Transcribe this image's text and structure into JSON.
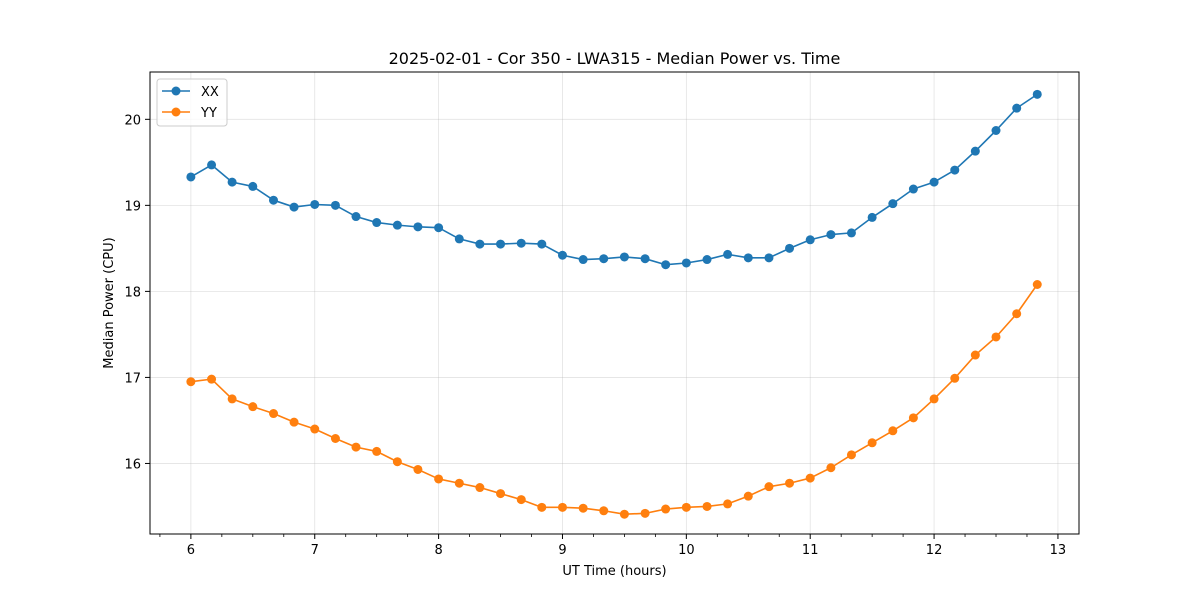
{
  "chart_data": {
    "type": "line",
    "title": "2025-02-01 - Cor 350 - LWA315 - Median Power vs. Time",
    "xlabel": "UT Time (hours)",
    "ylabel": "Median Power (CPU)",
    "xlim": [
      5.67,
      13.17
    ],
    "ylim": [
      15.18,
      20.55
    ],
    "xticks": [
      6,
      7,
      8,
      9,
      10,
      11,
      12,
      13
    ],
    "xtick_labels": [
      "6",
      "7",
      "8",
      "9",
      "10",
      "11",
      "12",
      "13"
    ],
    "yticks": [
      16,
      17,
      18,
      19,
      20
    ],
    "ytick_labels": [
      "16",
      "17",
      "18",
      "19",
      "20"
    ],
    "grid": true,
    "legend_position": "top-left",
    "x": [
      6.0,
      6.167,
      6.333,
      6.5,
      6.667,
      6.833,
      7.0,
      7.167,
      7.333,
      7.5,
      7.667,
      7.833,
      8.0,
      8.167,
      8.333,
      8.5,
      8.667,
      8.833,
      9.0,
      9.167,
      9.333,
      9.5,
      9.667,
      9.833,
      10.0,
      10.167,
      10.333,
      10.5,
      10.667,
      10.833,
      11.0,
      11.167,
      11.333,
      11.5,
      11.667,
      11.833,
      12.0,
      12.167,
      12.333,
      12.5,
      12.667,
      12.833
    ],
    "series": [
      {
        "name": "XX",
        "color": "#1f77b4",
        "values": [
          19.33,
          19.47,
          19.27,
          19.22,
          19.06,
          18.98,
          19.01,
          19.0,
          18.87,
          18.8,
          18.77,
          18.75,
          18.74,
          18.61,
          18.55,
          18.55,
          18.56,
          18.55,
          18.42,
          18.37,
          18.38,
          18.4,
          18.38,
          18.31,
          18.33,
          18.37,
          18.43,
          18.39,
          18.39,
          18.5,
          18.6,
          18.66,
          18.68,
          18.86,
          19.02,
          19.19,
          19.27,
          19.41,
          19.63,
          19.87,
          20.13,
          20.29
        ]
      },
      {
        "name": "YY",
        "color": "#ff7f0e",
        "values": [
          16.95,
          16.98,
          16.75,
          16.66,
          16.58,
          16.48,
          16.4,
          16.29,
          16.19,
          16.14,
          16.02,
          15.93,
          15.82,
          15.77,
          15.72,
          15.65,
          15.58,
          15.49,
          15.49,
          15.48,
          15.45,
          15.41,
          15.42,
          15.47,
          15.49,
          15.5,
          15.53,
          15.62,
          15.73,
          15.77,
          15.83,
          15.95,
          16.1,
          16.24,
          16.38,
          16.53,
          16.75,
          16.99,
          17.26,
          17.47,
          17.74,
          18.08
        ]
      }
    ]
  }
}
